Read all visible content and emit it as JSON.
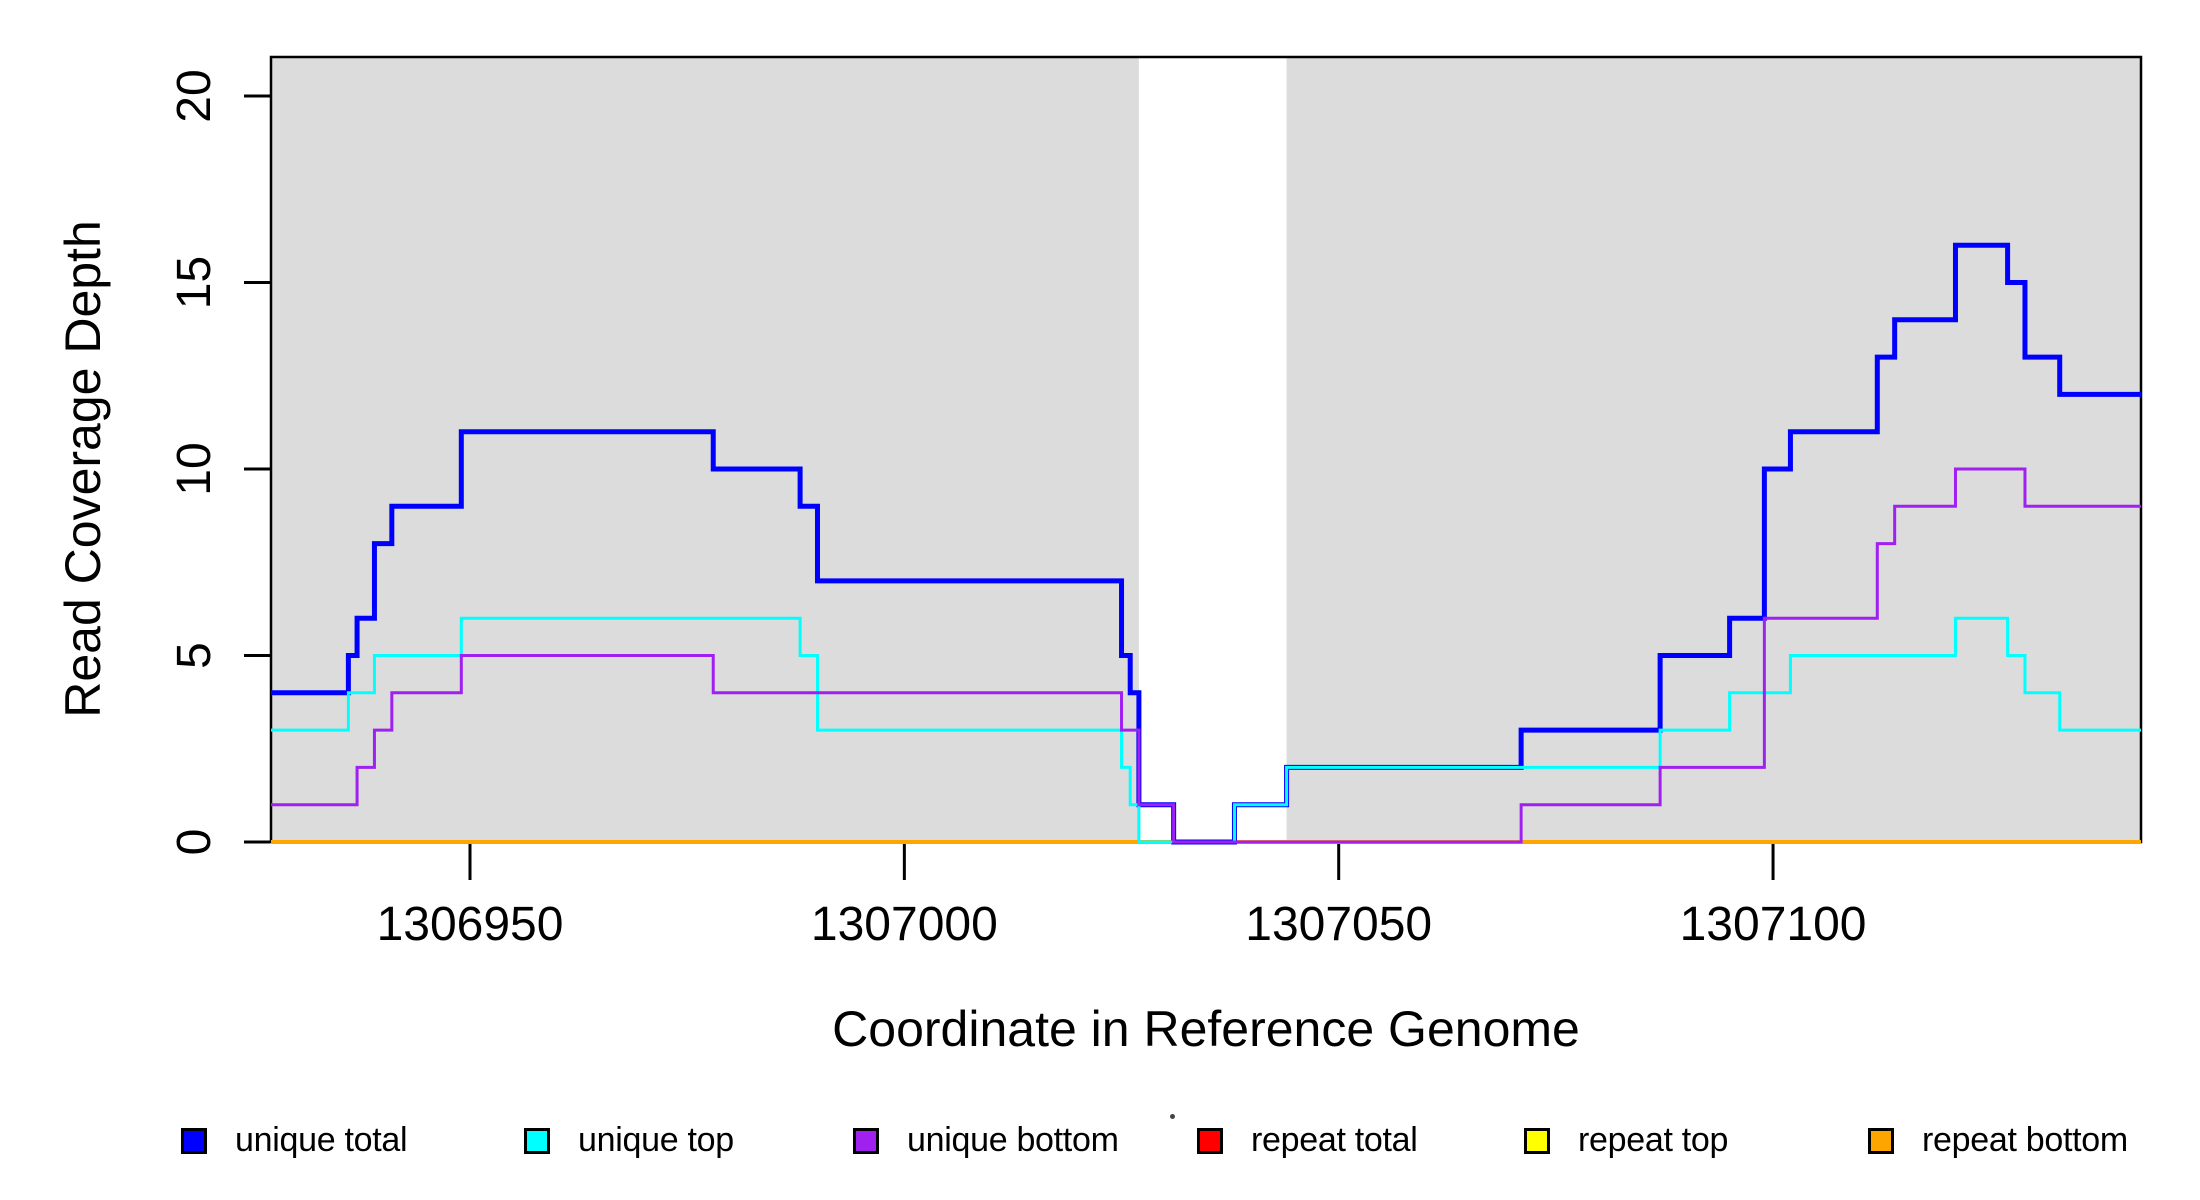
{
  "figure": {
    "y_axis": {
      "label": "Read Coverage Depth",
      "ticks": [
        0,
        5,
        10,
        15,
        20
      ]
    },
    "x_axis": {
      "label": "Coordinate in Reference Genome",
      "ticks": [
        1306950,
        1307000,
        1307050,
        1307100
      ]
    }
  },
  "legend": {
    "items": [
      {
        "label": "unique total",
        "color": "#0000FF"
      },
      {
        "label": "unique top",
        "color": "#00FFFF"
      },
      {
        "label": "unique bottom",
        "color": "#A020F0"
      },
      {
        "label": "repeat total",
        "color": "#FF0000"
      },
      {
        "label": "repeat top",
        "color": "#FFFF00"
      },
      {
        "label": "repeat bottom",
        "color": "#FFA500"
      }
    ]
  },
  "chart_data": {
    "type": "line",
    "subtype": "step-coverage",
    "title": "",
    "xlabel": "Coordinate in Reference Genome",
    "ylabel": "Read Coverage Depth",
    "xlim": [
      1306927,
      1307142
    ],
    "ylim": [
      0,
      21
    ],
    "x_ticks": [
      1306950,
      1307000,
      1307050,
      1307100
    ],
    "y_ticks": [
      0,
      5,
      10,
      15,
      20
    ],
    "grid": false,
    "legend_position": "bottom",
    "background_color": "#FFFFFF",
    "shaded_region_color": "#DCDCDC",
    "shaded_regions": [
      {
        "start": null,
        "end": 1307027
      },
      {
        "start": 1307044,
        "end": null
      }
    ],
    "series": [
      {
        "name": "unique total",
        "color": "#0000FF",
        "width": 5,
        "steps": [
          [
            1306927,
            4
          ],
          [
            1306936,
            5
          ],
          [
            1306937,
            6
          ],
          [
            1306939,
            8
          ],
          [
            1306941,
            9
          ],
          [
            1306949,
            11
          ],
          [
            1306978,
            10
          ],
          [
            1306988,
            9
          ],
          [
            1306990,
            7
          ],
          [
            1307025,
            5
          ],
          [
            1307026,
            4
          ],
          [
            1307027,
            1
          ],
          [
            1307031,
            0
          ],
          [
            1307038,
            1
          ],
          [
            1307044,
            2
          ],
          [
            1307071,
            3
          ],
          [
            1307087,
            5
          ],
          [
            1307095,
            6
          ],
          [
            1307099,
            10
          ],
          [
            1307102,
            11
          ],
          [
            1307112,
            13
          ],
          [
            1307114,
            14
          ],
          [
            1307121,
            16
          ],
          [
            1307127,
            15
          ],
          [
            1307129,
            13
          ],
          [
            1307133,
            12
          ]
        ]
      },
      {
        "name": "unique top",
        "color": "#00FFFF",
        "width": 3,
        "steps": [
          [
            1306927,
            3
          ],
          [
            1306936,
            4
          ],
          [
            1306939,
            5
          ],
          [
            1306949,
            6
          ],
          [
            1306988,
            5
          ],
          [
            1306990,
            3
          ],
          [
            1307025,
            2
          ],
          [
            1307026,
            1
          ],
          [
            1307027,
            0
          ],
          [
            1307038,
            1
          ],
          [
            1307044,
            2
          ],
          [
            1307087,
            3
          ],
          [
            1307095,
            4
          ],
          [
            1307102,
            5
          ],
          [
            1307121,
            6
          ],
          [
            1307127,
            5
          ],
          [
            1307129,
            4
          ],
          [
            1307133,
            3
          ]
        ]
      },
      {
        "name": "unique bottom",
        "color": "#A020F0",
        "width": 3,
        "steps": [
          [
            1306927,
            1
          ],
          [
            1306937,
            2
          ],
          [
            1306939,
            3
          ],
          [
            1306941,
            4
          ],
          [
            1306949,
            5
          ],
          [
            1306978,
            4
          ],
          [
            1307025,
            3
          ],
          [
            1307027,
            1
          ],
          [
            1307031,
            0
          ],
          [
            1307071,
            1
          ],
          [
            1307087,
            2
          ],
          [
            1307099,
            6
          ],
          [
            1307112,
            8
          ],
          [
            1307114,
            9
          ],
          [
            1307121,
            10
          ],
          [
            1307129,
            9
          ]
        ]
      },
      {
        "name": "repeat total",
        "color": "#FF0000",
        "width": 3,
        "steps": [
          [
            1306927,
            0
          ]
        ]
      },
      {
        "name": "repeat top",
        "color": "#FFFF00",
        "width": 3,
        "steps": [
          [
            1306927,
            0
          ]
        ]
      },
      {
        "name": "repeat bottom",
        "color": "#FFA500",
        "width": 4,
        "steps": [
          [
            1306927,
            0
          ]
        ]
      }
    ],
    "draw_order": [
      "repeat total",
      "repeat top",
      "repeat bottom",
      "unique total",
      "unique top",
      "unique bottom"
    ]
  }
}
